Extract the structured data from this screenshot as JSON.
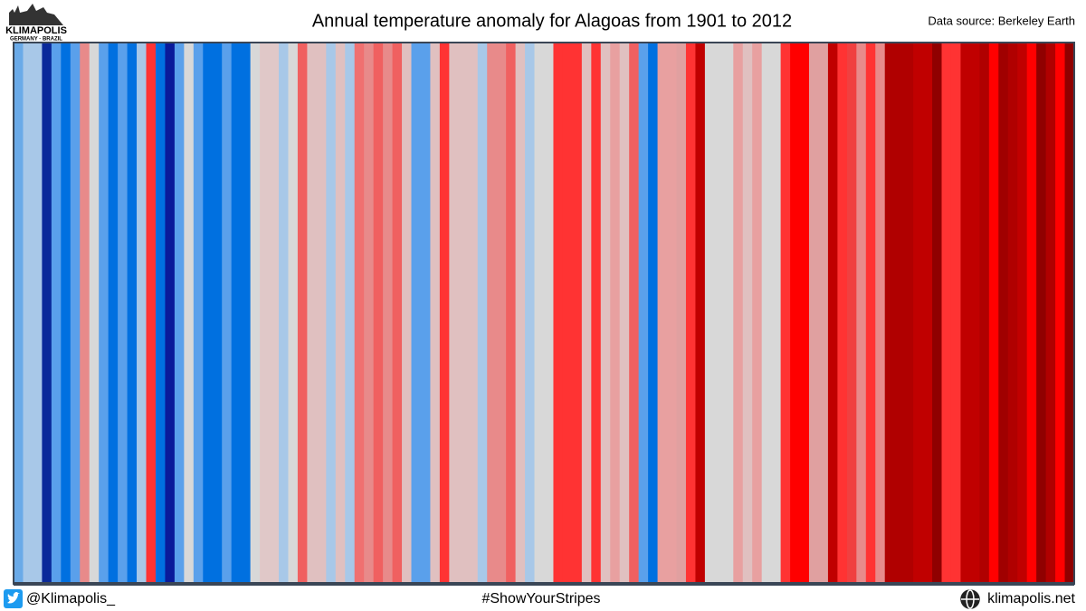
{
  "chart_data": {
    "type": "stripes",
    "title": "Annual temperature anomaly for Alagoas from 1901 to 2012",
    "source": "Data source: Berkeley Earth",
    "logo": {
      "name": "KLIMAPOLIS",
      "tagline": "GERMANY · BRAZIL"
    },
    "footer": {
      "handle": "@Klimapolis_",
      "hashtag": "#ShowYourStripes",
      "website": "klimapolis.net"
    },
    "xlim": [
      1901,
      2012
    ],
    "x": [
      1901,
      1902,
      1903,
      1904,
      1905,
      1906,
      1907,
      1908,
      1909,
      1910,
      1911,
      1912,
      1913,
      1914,
      1915,
      1916,
      1917,
      1918,
      1919,
      1920,
      1921,
      1922,
      1923,
      1924,
      1925,
      1926,
      1927,
      1928,
      1929,
      1930,
      1931,
      1932,
      1933,
      1934,
      1935,
      1936,
      1937,
      1938,
      1939,
      1940,
      1941,
      1942,
      1943,
      1944,
      1945,
      1946,
      1947,
      1948,
      1949,
      1950,
      1951,
      1952,
      1953,
      1954,
      1955,
      1956,
      1957,
      1958,
      1959,
      1960,
      1961,
      1962,
      1963,
      1964,
      1965,
      1966,
      1967,
      1968,
      1969,
      1970,
      1971,
      1972,
      1973,
      1974,
      1975,
      1976,
      1977,
      1978,
      1979,
      1980,
      1981,
      1982,
      1983,
      1984,
      1985,
      1986,
      1987,
      1988,
      1989,
      1990,
      1991,
      1992,
      1993,
      1994,
      1995,
      1996,
      1997,
      1998,
      1999,
      2000,
      2001,
      2002,
      2003,
      2004,
      2005,
      2006,
      2007,
      2008,
      2009,
      2010,
      2011,
      2012
    ],
    "colors": [
      "#6aaae8",
      "#a8c8e8",
      "#a8c8e8",
      "#0a2a9a",
      "#5aa0eb",
      "#0070e0",
      "#5aa0eb",
      "#e88a8a",
      "#d8d8d8",
      "#5aa0eb",
      "#0070e0",
      "#5aa0eb",
      "#0070e0",
      "#a8c8e8",
      "#ff3333",
      "#0070e0",
      "#0a1a9a",
      "#5aa0eb",
      "#d8d8d8",
      "#5aa0eb",
      "#0070e0",
      "#0070e0",
      "#5aa0eb",
      "#0070e0",
      "#0070e0",
      "#d8d8d8",
      "#e0c8c8",
      "#e0c8c8",
      "#a8c8e8",
      "#d8d8d8",
      "#f06060",
      "#e0c0c0",
      "#e0c0c0",
      "#a8c8e8",
      "#e0c0c0",
      "#a8c8e8",
      "#f07070",
      "#e88a8a",
      "#f06060",
      "#e88a8a",
      "#f06060",
      "#e0c0c0",
      "#5aa0eb",
      "#5aa0eb",
      "#e0c0c0",
      "#ff3333",
      "#e0c0c0",
      "#e0c0c0",
      "#e0c0c0",
      "#a8c8e8",
      "#e88a8a",
      "#e88a8a",
      "#f06060",
      "#e0c0c0",
      "#a8c8e8",
      "#d8d8d8",
      "#d8d8d8",
      "#ff3333",
      "#ff3333",
      "#ff3333",
      "#e0c0c0",
      "#ff3333",
      "#e0c0c0",
      "#e8a0a0",
      "#e0c0c0",
      "#f06060",
      "#5aa0eb",
      "#0070e0",
      "#e8a0a0",
      "#e8a0a0",
      "#e0a0a0",
      "#ff3333",
      "#c00000",
      "#d8d8d8",
      "#d8d8d8",
      "#d8d8d8",
      "#e8a0a0",
      "#e0c0c0",
      "#e8a0a0",
      "#d8d8d8",
      "#d8d8d8",
      "#ff3333",
      "#ff0000",
      "#ff0000",
      "#e0a0a0",
      "#e0a0a0",
      "#c00000",
      "#ff3333",
      "#f04040",
      "#e88a8a",
      "#ff3333",
      "#e88a8a",
      "#b00000",
      "#b00000",
      "#b00000",
      "#c00000",
      "#c00000",
      "#900000",
      "#ff3333",
      "#ff3333",
      "#c00000",
      "#c00000",
      "#b00000",
      "#ff0000",
      "#a00000",
      "#b00000",
      "#c00000",
      "#ff0000",
      "#900000",
      "#b00000",
      "#ff0000",
      "#900000"
    ]
  }
}
